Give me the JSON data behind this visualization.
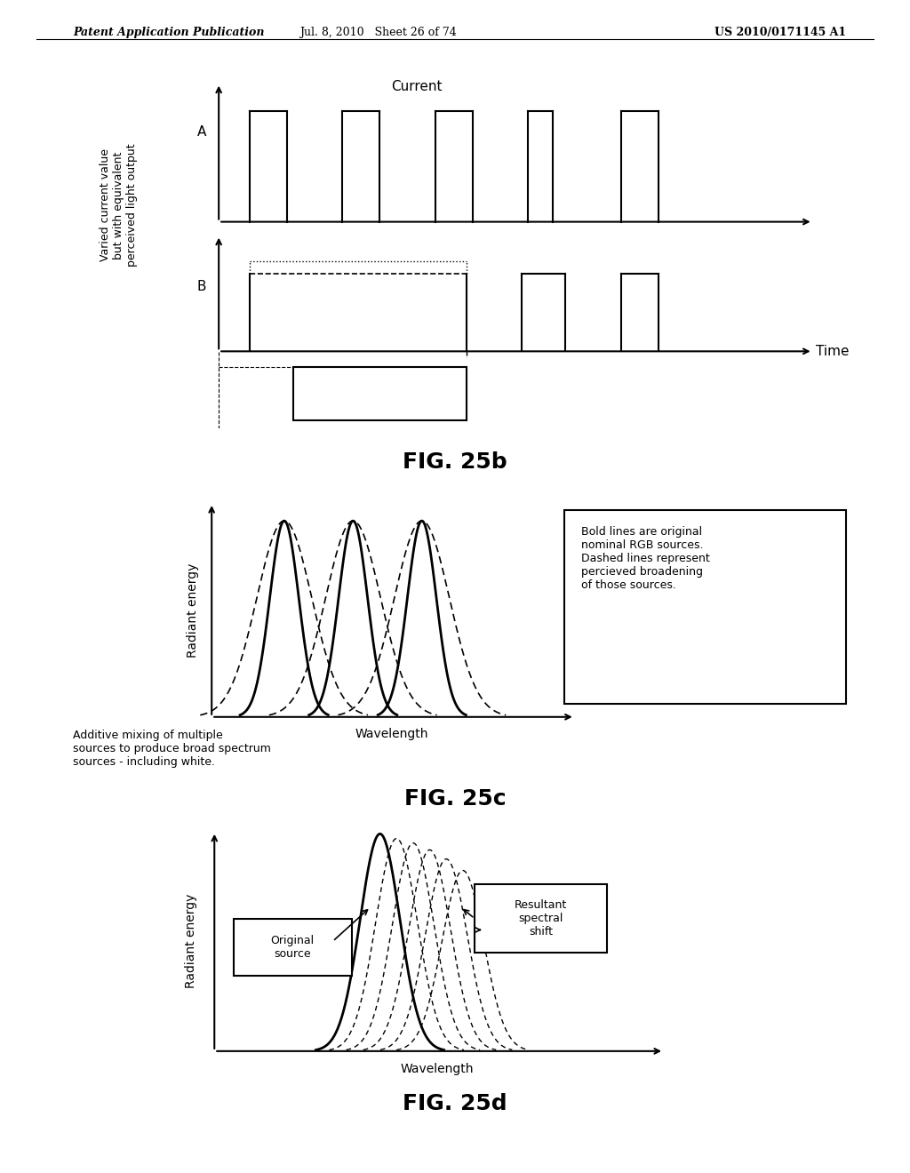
{
  "header_left": "Patent Application Publication",
  "header_mid": "Jul. 8, 2010   Sheet 26 of 74",
  "header_right": "US 2010/0171145 A1",
  "fig25b_title": "FIG. 25b",
  "fig25c_title": "FIG. 25c",
  "fig25d_title": "FIG. 25d",
  "fig25b_ylabel_rotated": "Varied current value\nbut with equivalent\nperceived light output",
  "fig25b_current_label": "Current",
  "fig25b_time_label": "Time",
  "fig25b_A_label": "A",
  "fig25b_B_label": "B",
  "fig25c_xlabel": "Wavelength",
  "fig25c_ylabel": "Radiant energy",
  "fig25c_note": "Bold lines are original\nnominal RGB sources.\nDashed lines represent\npercieved broadening\nof those sources.",
  "fig25c_caption": "Additive mixing of multiple\nsources to produce broad spectrum\nsources - including white.",
  "fig25d_xlabel": "Wavelength",
  "fig25d_ylabel": "Radiant energy",
  "fig25d_label_orig": "Original\nsource",
  "fig25d_label_result": "Resultant\nspectral\nshift",
  "bg_color": "#ffffff",
  "line_color": "#000000"
}
